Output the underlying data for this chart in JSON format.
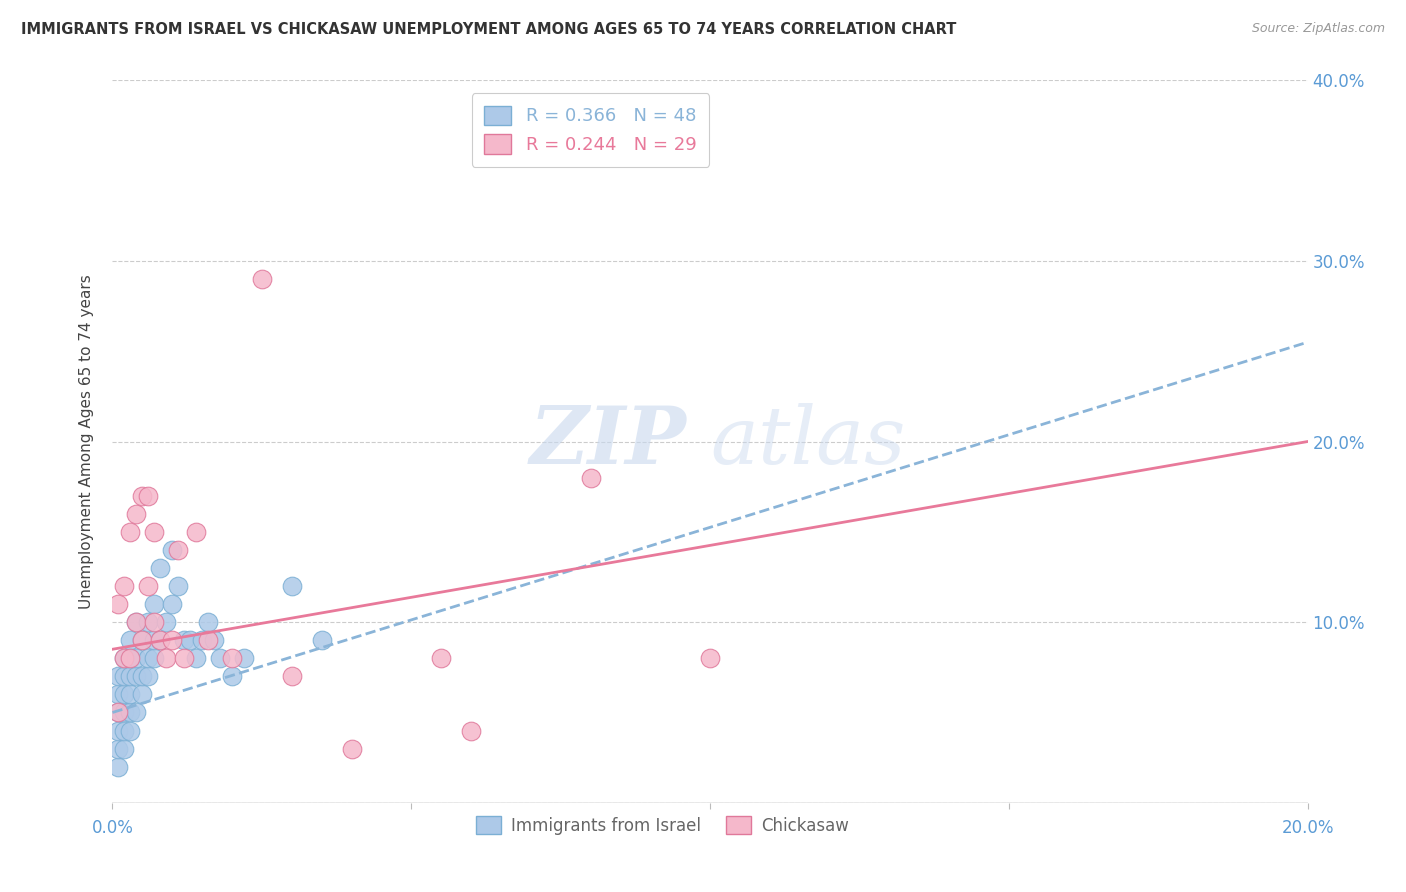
{
  "title": "IMMIGRANTS FROM ISRAEL VS CHICKASAW UNEMPLOYMENT AMONG AGES 65 TO 74 YEARS CORRELATION CHART",
  "source": "Source: ZipAtlas.com",
  "ylabel": "Unemployment Among Ages 65 to 74 years",
  "xlim": [
    0.0,
    0.2
  ],
  "ylim": [
    0.0,
    0.4
  ],
  "xticks": [
    0.0,
    0.05,
    0.1,
    0.15,
    0.2
  ],
  "xtick_labels": [
    "0.0%",
    "",
    "",
    "",
    "20.0%"
  ],
  "ytick_labels_right": [
    "10.0%",
    "20.0%",
    "30.0%",
    "40.0%"
  ],
  "yticks_right": [
    0.1,
    0.2,
    0.3,
    0.4
  ],
  "yticks": [
    0.0,
    0.1,
    0.2,
    0.3,
    0.4
  ],
  "series1_label": "Immigrants from Israel",
  "series1_R": "0.366",
  "series1_N": "48",
  "series1_color": "#adc9e8",
  "series1_edge": "#7bafd4",
  "series2_label": "Chickasaw",
  "series2_R": "0.244",
  "series2_N": "29",
  "series2_color": "#f5b8cb",
  "series2_edge": "#e0789a",
  "trendline1_color": "#8ab4d8",
  "trendline2_color": "#e8799a",
  "background_color": "#ffffff",
  "watermark_zip": "ZIP",
  "watermark_atlas": "atlas",
  "trendline1_x0": 0.0,
  "trendline1_y0": 0.05,
  "trendline1_x1": 0.2,
  "trendline1_y1": 0.255,
  "trendline2_x0": 0.0,
  "trendline2_y0": 0.085,
  "trendline2_x1": 0.2,
  "trendline2_y1": 0.2,
  "series1_x": [
    0.001,
    0.001,
    0.001,
    0.001,
    0.001,
    0.001,
    0.002,
    0.002,
    0.002,
    0.002,
    0.002,
    0.002,
    0.003,
    0.003,
    0.003,
    0.003,
    0.003,
    0.003,
    0.004,
    0.004,
    0.004,
    0.004,
    0.005,
    0.005,
    0.005,
    0.006,
    0.006,
    0.006,
    0.007,
    0.007,
    0.007,
    0.008,
    0.008,
    0.009,
    0.01,
    0.01,
    0.011,
    0.012,
    0.013,
    0.014,
    0.015,
    0.016,
    0.017,
    0.018,
    0.02,
    0.022,
    0.03,
    0.035
  ],
  "series1_y": [
    0.02,
    0.03,
    0.04,
    0.05,
    0.06,
    0.07,
    0.03,
    0.04,
    0.05,
    0.06,
    0.07,
    0.08,
    0.04,
    0.05,
    0.06,
    0.07,
    0.08,
    0.09,
    0.05,
    0.07,
    0.08,
    0.1,
    0.06,
    0.07,
    0.09,
    0.07,
    0.08,
    0.1,
    0.08,
    0.09,
    0.11,
    0.09,
    0.13,
    0.1,
    0.11,
    0.14,
    0.12,
    0.09,
    0.09,
    0.08,
    0.09,
    0.1,
    0.09,
    0.08,
    0.07,
    0.08,
    0.12,
    0.09
  ],
  "series2_x": [
    0.001,
    0.001,
    0.002,
    0.002,
    0.003,
    0.003,
    0.004,
    0.004,
    0.005,
    0.005,
    0.006,
    0.006,
    0.007,
    0.007,
    0.008,
    0.009,
    0.01,
    0.011,
    0.012,
    0.014,
    0.016,
    0.02,
    0.025,
    0.03,
    0.04,
    0.055,
    0.06,
    0.08,
    0.1
  ],
  "series2_y": [
    0.05,
    0.11,
    0.08,
    0.12,
    0.08,
    0.15,
    0.1,
    0.16,
    0.09,
    0.17,
    0.12,
    0.17,
    0.1,
    0.15,
    0.09,
    0.08,
    0.09,
    0.14,
    0.08,
    0.15,
    0.09,
    0.08,
    0.29,
    0.07,
    0.03,
    0.08,
    0.04,
    0.18,
    0.08
  ]
}
